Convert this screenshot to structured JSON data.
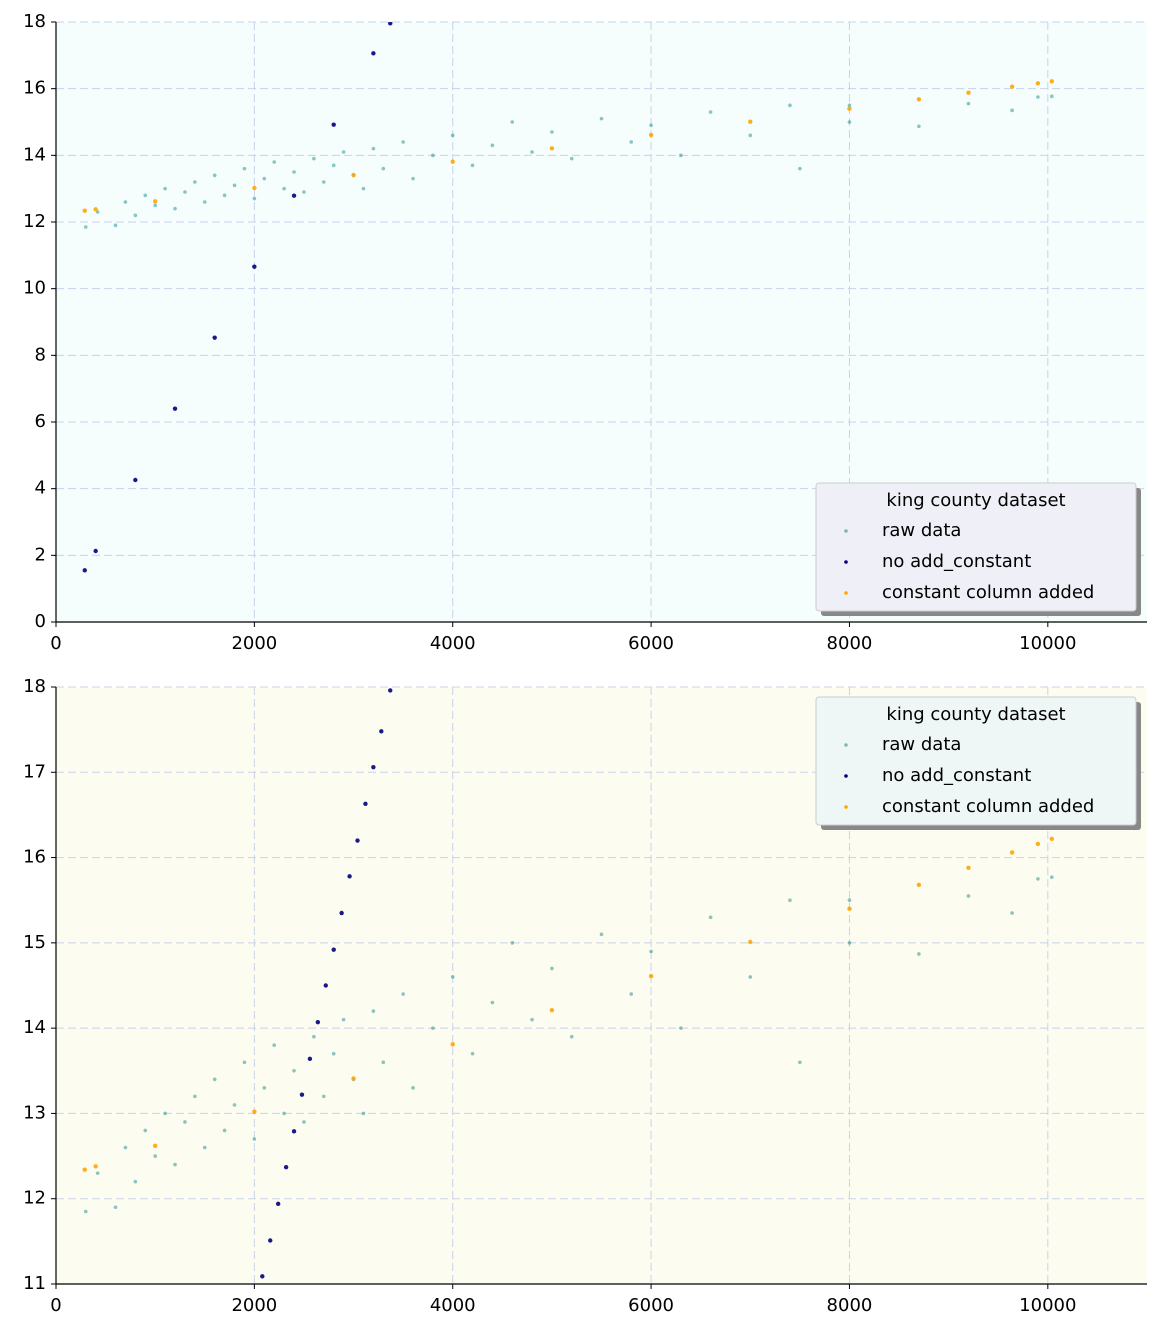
{
  "chart_data": [
    {
      "type": "scatter",
      "background": "#f5fdfd",
      "legend_background": "#efeff7",
      "grid": true,
      "legend": {
        "title": "king county dataset",
        "loc": "lower right"
      },
      "xlim": [
        0,
        11000
      ],
      "xticks": [
        0,
        2000,
        4000,
        6000,
        8000,
        10000
      ],
      "ylim": [
        0,
        18
      ],
      "yticks": [
        0,
        2,
        4,
        6,
        8,
        10,
        12,
        14,
        16,
        18
      ],
      "series": [
        {
          "name": "raw data",
          "color": "#008080",
          "x": [
            300,
            420,
            600,
            700,
            800,
            900,
            1000,
            1100,
            1200,
            1300,
            1400,
            1500,
            1600,
            1700,
            1800,
            1900,
            2000,
            2100,
            2200,
            2300,
            2400,
            2500,
            2600,
            2700,
            2800,
            2900,
            3000,
            3100,
            3200,
            3300,
            3500,
            3600,
            3800,
            4000,
            4200,
            4400,
            4600,
            4800,
            5000,
            5200,
            5500,
            5800,
            6000,
            6300,
            6600,
            7000,
            7400,
            7500,
            8000,
            8000,
            8700,
            9200,
            9640,
            9900,
            10040
          ],
          "values": [
            11.85,
            12.3,
            11.9,
            12.6,
            12.2,
            12.8,
            12.5,
            13.0,
            12.4,
            12.9,
            13.2,
            12.6,
            13.4,
            12.8,
            13.1,
            13.6,
            12.7,
            13.3,
            13.8,
            13.0,
            13.5,
            12.9,
            13.9,
            13.2,
            13.7,
            14.1,
            13.4,
            13.0,
            14.2,
            13.6,
            14.4,
            13.3,
            14.0,
            14.6,
            13.7,
            14.3,
            15.0,
            14.1,
            14.7,
            13.9,
            15.1,
            14.4,
            14.9,
            14.0,
            15.3,
            14.6,
            15.5,
            13.6,
            15.0,
            15.5,
            14.87,
            15.55,
            15.35,
            15.75,
            15.77
          ]
        },
        {
          "name": "no add_constant",
          "color": "#000080",
          "x": [
            290,
            400,
            800,
            1200,
            1600,
            2000,
            2400,
            2800,
            3200,
            3370
          ],
          "values": [
            1.55,
            2.13,
            4.26,
            6.4,
            8.53,
            10.66,
            12.79,
            14.92,
            17.06,
            17.96
          ]
        },
        {
          "name": "constant column added",
          "color": "#ffa500",
          "x": [
            290,
            400,
            1000,
            2000,
            3000,
            4000,
            5000,
            6000,
            7000,
            8000,
            8700,
            9200,
            9640,
            9900,
            10040
          ],
          "values": [
            12.34,
            12.38,
            12.62,
            13.02,
            13.41,
            13.81,
            14.21,
            14.61,
            15.01,
            15.4,
            15.68,
            15.88,
            16.06,
            16.16,
            16.22
          ]
        }
      ]
    },
    {
      "type": "scatter",
      "background": "#fcfcf0",
      "legend_background": "#eef7f5",
      "grid": true,
      "legend": {
        "title": "king county dataset",
        "loc": "upper right"
      },
      "xlim": [
        0,
        11000
      ],
      "xticks": [
        0,
        2000,
        4000,
        6000,
        8000,
        10000
      ],
      "ylim": [
        11,
        18
      ],
      "yticks": [
        11,
        12,
        13,
        14,
        15,
        16,
        17,
        18
      ],
      "series": [
        {
          "name": "raw data",
          "color": "#008080",
          "x": [
            300,
            420,
            600,
            700,
            800,
            900,
            1000,
            1100,
            1200,
            1300,
            1400,
            1500,
            1600,
            1700,
            1800,
            1900,
            2000,
            2100,
            2200,
            2300,
            2400,
            2500,
            2600,
            2700,
            2800,
            2900,
            3000,
            3100,
            3200,
            3300,
            3500,
            3600,
            3800,
            4000,
            4200,
            4400,
            4600,
            4800,
            5000,
            5200,
            5500,
            5800,
            6000,
            6300,
            6600,
            7000,
            7400,
            7500,
            8000,
            8000,
            8700,
            9200,
            9640,
            9900,
            10040
          ],
          "values": [
            11.85,
            12.3,
            11.9,
            12.6,
            12.2,
            12.8,
            12.5,
            13.0,
            12.4,
            12.9,
            13.2,
            12.6,
            13.4,
            12.8,
            13.1,
            13.6,
            12.7,
            13.3,
            13.8,
            13.0,
            13.5,
            12.9,
            13.9,
            13.2,
            13.7,
            14.1,
            13.4,
            13.0,
            14.2,
            13.6,
            14.4,
            13.3,
            14.0,
            14.6,
            13.7,
            14.3,
            15.0,
            14.1,
            14.7,
            13.9,
            15.1,
            14.4,
            14.9,
            14.0,
            15.3,
            14.6,
            15.5,
            13.6,
            15.0,
            15.5,
            14.87,
            15.55,
            15.35,
            15.75,
            15.77
          ]
        },
        {
          "name": "no add_constant",
          "color": "#000080",
          "x": [
            2080,
            2160,
            2240,
            2320,
            2400,
            2480,
            2560,
            2640,
            2720,
            2800,
            2880,
            2960,
            3040,
            3120,
            3200,
            3280,
            3370
          ],
          "values": [
            11.09,
            11.51,
            11.94,
            12.37,
            12.79,
            13.22,
            13.64,
            14.07,
            14.5,
            14.92,
            15.35,
            15.78,
            16.2,
            16.63,
            17.06,
            17.48,
            17.96
          ]
        },
        {
          "name": "constant column added",
          "color": "#ffa500",
          "x": [
            290,
            400,
            1000,
            2000,
            3000,
            4000,
            5000,
            6000,
            7000,
            8000,
            8700,
            9200,
            9640,
            9900,
            10040
          ],
          "values": [
            12.34,
            12.38,
            12.62,
            13.02,
            13.41,
            13.81,
            14.21,
            14.61,
            15.01,
            15.4,
            15.68,
            15.88,
            16.06,
            16.16,
            16.22
          ]
        }
      ]
    }
  ]
}
